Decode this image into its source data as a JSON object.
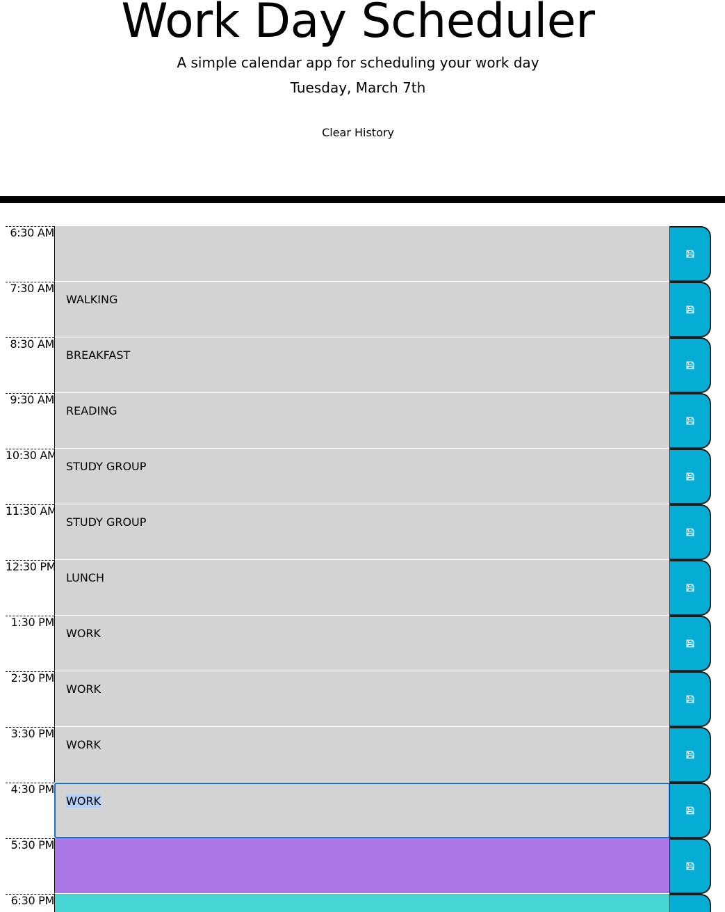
{
  "header": {
    "title": "Work Day Scheduler",
    "subtitle": "A simple calendar app for scheduling your work day",
    "current_day": "Tuesday, March 7th",
    "clear_history_label": "Clear History"
  },
  "colors": {
    "past": "#d3d3d3",
    "present": "#47d5d2",
    "future": "#ac77e6",
    "save_button": "#06aed5"
  },
  "save_icon": "floppy-disk-icon",
  "time_blocks": [
    {
      "hour": "6:30 AM",
      "text": "",
      "state": "past"
    },
    {
      "hour": "7:30 AM",
      "text": "WALKING",
      "state": "past"
    },
    {
      "hour": "8:30 AM",
      "text": "BREAKFAST",
      "state": "past"
    },
    {
      "hour": "9:30 AM",
      "text": "READING",
      "state": "past"
    },
    {
      "hour": "10:30 AM",
      "text": "STUDY GROUP",
      "state": "past"
    },
    {
      "hour": "11:30 AM",
      "text": "STUDY GROUP",
      "state": "past"
    },
    {
      "hour": "12:30 PM",
      "text": "LUNCH",
      "state": "past"
    },
    {
      "hour": "1:30 PM",
      "text": "WORK",
      "state": "past"
    },
    {
      "hour": "2:30 PM",
      "text": "WORK",
      "state": "past"
    },
    {
      "hour": "3:30 PM",
      "text": "WORK",
      "state": "past"
    },
    {
      "hour": "4:30 PM",
      "text": "WORK",
      "state": "past"
    },
    {
      "hour": "5:30 PM",
      "text": "",
      "state": "future"
    },
    {
      "hour": "6:30 PM",
      "text": "",
      "state": "present"
    }
  ]
}
